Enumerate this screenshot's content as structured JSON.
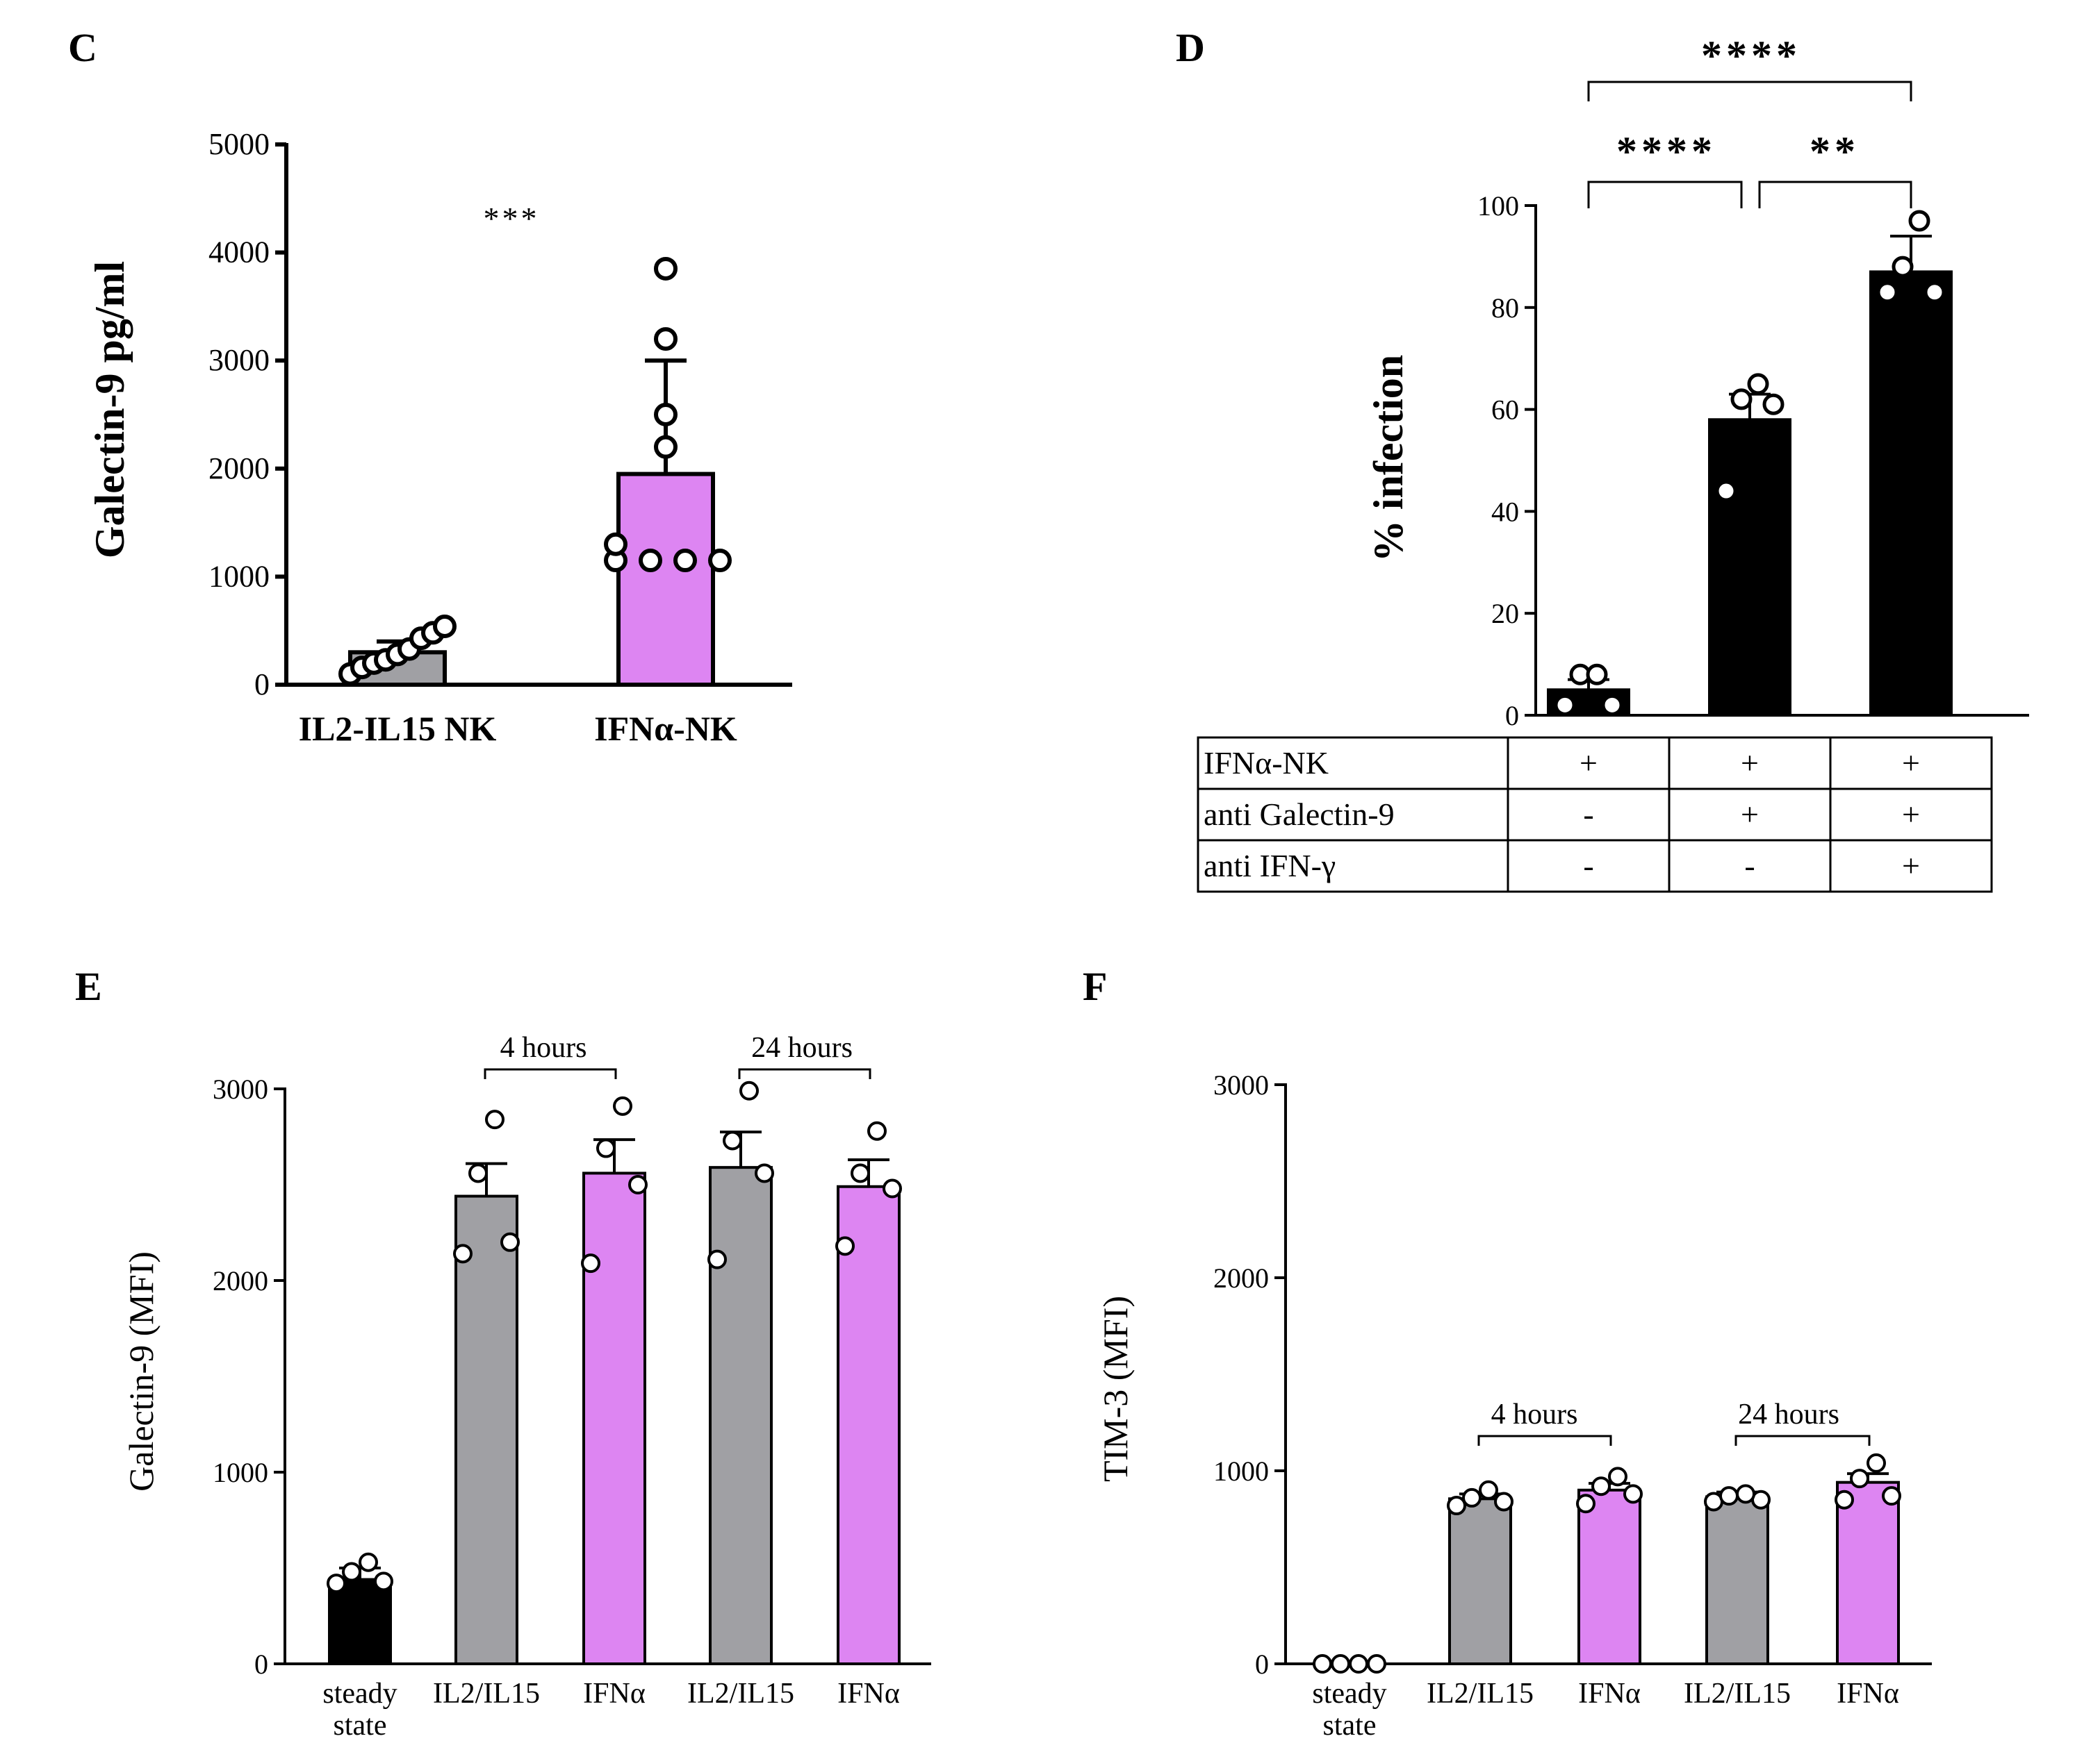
{
  "colors": {
    "black": "#000000",
    "gray": "#a0a0a4",
    "pink": "#dd85f2",
    "point_fill": "#ffffff"
  },
  "panels": {
    "C": {
      "letter": "C",
      "ylabel": "Galectin-9 pg/ml",
      "significance": "***"
    },
    "D": {
      "letter": "D",
      "ylabel": "% infection",
      "significance": [
        "****",
        "****",
        "**"
      ],
      "table": {
        "rows": [
          {
            "label": "IFNα-NK",
            "signs": [
              "+",
              "+",
              "+"
            ]
          },
          {
            "label": "anti Galectin-9",
            "signs": [
              "-",
              "+",
              "+"
            ]
          },
          {
            "label": "anti IFN-γ",
            "signs": [
              "-",
              "-",
              "+"
            ]
          }
        ]
      }
    },
    "E": {
      "letter": "E",
      "ylabel": "Galectin-9 (MFI)",
      "brackets": [
        "4 hours",
        "24 hours"
      ]
    },
    "F": {
      "letter": "F",
      "ylabel": "TIM-3 (MFI)",
      "brackets": [
        "4 hours",
        "24 hours"
      ]
    }
  },
  "chart_data": [
    {
      "panel": "C",
      "type": "bar",
      "categories": [
        "IL2-IL15 NK",
        "IFNα-NK"
      ],
      "values": [
        300,
        1950
      ],
      "error": [
        100,
        1050
      ],
      "colors": [
        "#a0a0a4",
        "#dd85f2"
      ],
      "points": [
        [
          100,
          160,
          200,
          230,
          280,
          330,
          430,
          480,
          540
        ],
        [
          1150,
          1150,
          1150,
          1150,
          1300,
          2200,
          2500,
          3200,
          3850
        ]
      ],
      "ylabel": "Galectin-9 pg/ml",
      "ylim": [
        0,
        5000
      ],
      "yticks": [
        0,
        1000,
        2000,
        3000,
        4000,
        5000
      ],
      "annotations": [
        {
          "text": "***",
          "y": 4400
        }
      ]
    },
    {
      "panel": "D",
      "type": "bar",
      "categories": [
        "",
        "",
        ""
      ],
      "values": [
        5,
        58,
        87
      ],
      "error": [
        2,
        5,
        7
      ],
      "colors": [
        "#000000",
        "#000000",
        "#000000"
      ],
      "points": [
        [
          2,
          2,
          8,
          8
        ],
        [
          44,
          61,
          62,
          65
        ],
        [
          83,
          83,
          88,
          97
        ]
      ],
      "ylabel": "% infection",
      "ylim": [
        0,
        100
      ],
      "yticks": [
        0,
        20,
        40,
        60,
        80,
        100
      ],
      "comparisons": [
        {
          "from": 0,
          "to": 2,
          "label": "****"
        },
        {
          "from": 0,
          "to": 1,
          "label": "****"
        },
        {
          "from": 1,
          "to": 2,
          "label": "**"
        }
      ]
    },
    {
      "panel": "E",
      "type": "bar",
      "categories": [
        "steady\nstate",
        "IL2/IL15",
        "IFNα",
        "IL2/IL15",
        "IFNα"
      ],
      "values": [
        440,
        2440,
        2560,
        2590,
        2490
      ],
      "error": [
        60,
        170,
        175,
        185,
        140
      ],
      "colors": [
        "#000000",
        "#a0a0a4",
        "#dd85f2",
        "#a0a0a4",
        "#dd85f2"
      ],
      "points": [
        [
          420,
          430,
          480,
          530
        ],
        [
          2140,
          2200,
          2560,
          2840
        ],
        [
          2090,
          2500,
          2690,
          2910
        ],
        [
          2110,
          2560,
          2730,
          2990
        ],
        [
          2180,
          2480,
          2560,
          2780
        ]
      ],
      "ylabel": "Galectin-9 (MFI)",
      "ylim": [
        0,
        3000
      ],
      "yticks": [
        0,
        1000,
        2000,
        3000
      ],
      "brackets": [
        {
          "from": 1,
          "to": 2,
          "label": "4 hours"
        },
        {
          "from": 3,
          "to": 4,
          "label": "24 hours"
        }
      ]
    },
    {
      "panel": "F",
      "type": "bar",
      "categories": [
        "steady\nstate",
        "IL2/IL15",
        "IFNα",
        "IL2/IL15",
        "IFNα"
      ],
      "values": [
        0,
        855,
        900,
        865,
        940
      ],
      "error": [
        0,
        25,
        35,
        25,
        45
      ],
      "colors": [
        "#000000",
        "#a0a0a4",
        "#dd85f2",
        "#a0a0a4",
        "#dd85f2"
      ],
      "points": [
        [
          0,
          0,
          0,
          0
        ],
        [
          820,
          840,
          860,
          900
        ],
        [
          830,
          880,
          920,
          970
        ],
        [
          840,
          850,
          870,
          880
        ],
        [
          850,
          870,
          960,
          1040
        ]
      ],
      "ylabel": "TIM-3 (MFI)",
      "ylim": [
        0,
        3000
      ],
      "yticks": [
        0,
        1000,
        2000,
        3000
      ],
      "brackets": [
        {
          "from": 1,
          "to": 2,
          "label": "4 hours"
        },
        {
          "from": 3,
          "to": 4,
          "label": "24 hours"
        }
      ]
    }
  ]
}
